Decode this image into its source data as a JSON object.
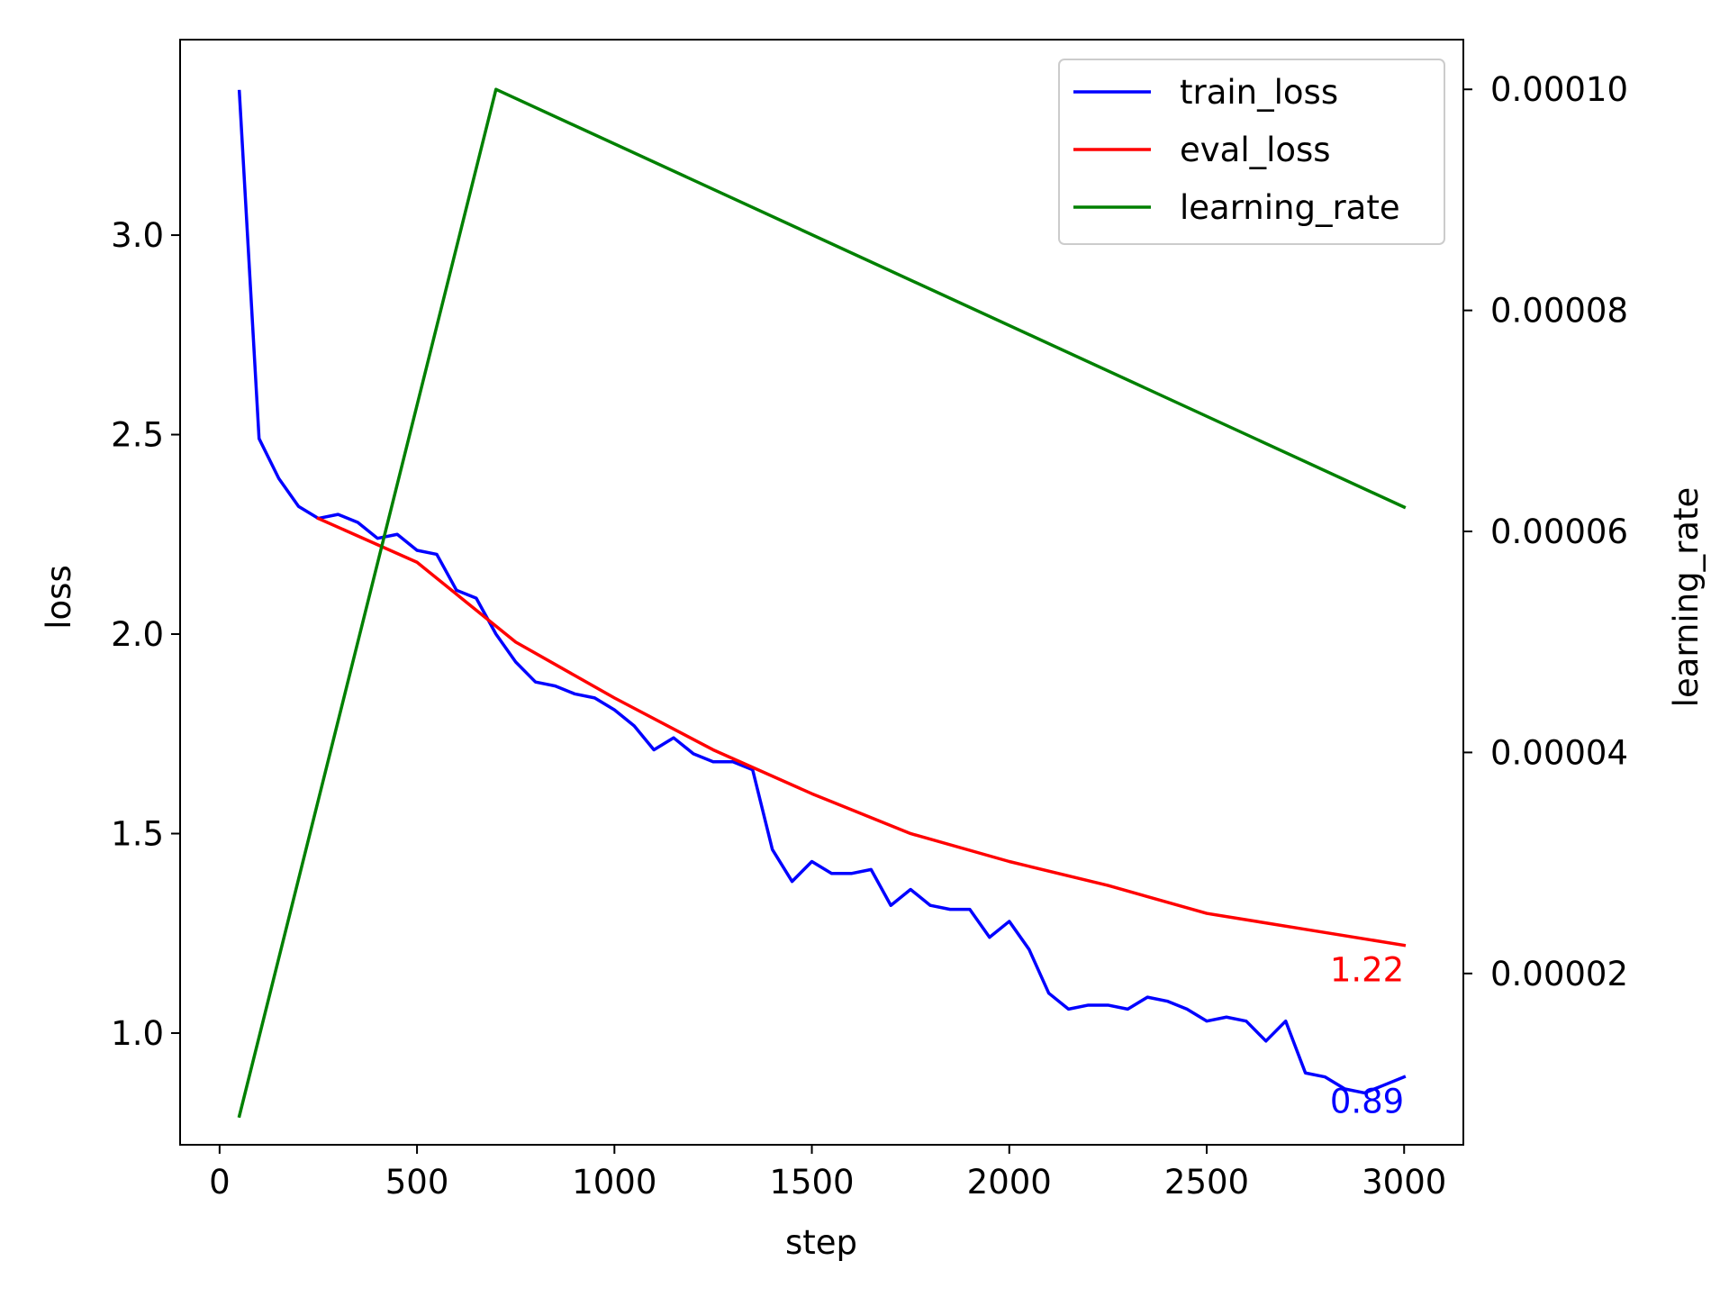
{
  "chart_data": {
    "type": "line",
    "xlabel": "step",
    "ylabel_left": "loss",
    "ylabel_right": "learning_rate",
    "xlim": [
      -100,
      3150
    ],
    "ylim_left": [
      0.72,
      3.49
    ],
    "ylim_right": [
      4.5e-06,
      0.0001045
    ],
    "x_ticks": [
      0,
      500,
      1000,
      1500,
      2000,
      2500,
      3000
    ],
    "y_left_ticks": [
      1.0,
      1.5,
      2.0,
      2.5,
      3.0
    ],
    "y_left_tick_labels": [
      "1.0",
      "1.5",
      "2.0",
      "2.5",
      "3.0"
    ],
    "y_right_ticks": [
      2e-05,
      4e-05,
      6e-05,
      8e-05,
      0.0001
    ],
    "y_right_tick_labels": [
      "0.00002",
      "0.00004",
      "0.00006",
      "0.00008",
      "0.00010"
    ],
    "legend_position": "top-right",
    "series": [
      {
        "name": "train_loss",
        "axis": "left",
        "color": "#0000ff",
        "points": [
          [
            50,
            3.36
          ],
          [
            100,
            2.49
          ],
          [
            150,
            2.39
          ],
          [
            200,
            2.32
          ],
          [
            250,
            2.29
          ],
          [
            300,
            2.3
          ],
          [
            350,
            2.28
          ],
          [
            400,
            2.24
          ],
          [
            450,
            2.25
          ],
          [
            500,
            2.21
          ],
          [
            550,
            2.2
          ],
          [
            600,
            2.11
          ],
          [
            650,
            2.09
          ],
          [
            700,
            2.0
          ],
          [
            750,
            1.93
          ],
          [
            800,
            1.88
          ],
          [
            850,
            1.87
          ],
          [
            900,
            1.85
          ],
          [
            950,
            1.84
          ],
          [
            1000,
            1.81
          ],
          [
            1050,
            1.77
          ],
          [
            1100,
            1.71
          ],
          [
            1150,
            1.74
          ],
          [
            1200,
            1.7
          ],
          [
            1250,
            1.68
          ],
          [
            1300,
            1.68
          ],
          [
            1350,
            1.66
          ],
          [
            1400,
            1.46
          ],
          [
            1450,
            1.38
          ],
          [
            1500,
            1.43
          ],
          [
            1550,
            1.4
          ],
          [
            1600,
            1.4
          ],
          [
            1650,
            1.41
          ],
          [
            1700,
            1.32
          ],
          [
            1750,
            1.36
          ],
          [
            1800,
            1.32
          ],
          [
            1850,
            1.31
          ],
          [
            1900,
            1.31
          ],
          [
            1950,
            1.24
          ],
          [
            2000,
            1.28
          ],
          [
            2050,
            1.21
          ],
          [
            2100,
            1.1
          ],
          [
            2150,
            1.06
          ],
          [
            2200,
            1.07
          ],
          [
            2250,
            1.07
          ],
          [
            2300,
            1.06
          ],
          [
            2350,
            1.09
          ],
          [
            2400,
            1.08
          ],
          [
            2450,
            1.06
          ],
          [
            2500,
            1.03
          ],
          [
            2550,
            1.04
          ],
          [
            2600,
            1.03
          ],
          [
            2650,
            0.98
          ],
          [
            2700,
            1.03
          ],
          [
            2750,
            0.9
          ],
          [
            2800,
            0.89
          ],
          [
            2850,
            0.86
          ],
          [
            2900,
            0.85
          ],
          [
            2950,
            0.87
          ],
          [
            3000,
            0.89
          ]
        ]
      },
      {
        "name": "eval_loss",
        "axis": "left",
        "color": "#ff0000",
        "points": [
          [
            250,
            2.29
          ],
          [
            500,
            2.18
          ],
          [
            750,
            1.98
          ],
          [
            1000,
            1.84
          ],
          [
            1250,
            1.71
          ],
          [
            1500,
            1.6
          ],
          [
            1750,
            1.5
          ],
          [
            2000,
            1.43
          ],
          [
            2250,
            1.37
          ],
          [
            2500,
            1.3
          ],
          [
            2750,
            1.26
          ],
          [
            3000,
            1.22
          ]
        ]
      },
      {
        "name": "learning_rate",
        "axis": "right",
        "color": "#008000",
        "points": [
          [
            50,
            7.1e-06
          ],
          [
            700,
            0.0001
          ],
          [
            3000,
            6.22e-05
          ]
        ]
      }
    ],
    "annotations": [
      {
        "text": "1.22",
        "x": 3000,
        "y": 1.22,
        "axis": "left",
        "color": "#ff0000"
      },
      {
        "text": "0.89",
        "x": 3000,
        "y": 0.89,
        "axis": "left",
        "color": "#0000ff"
      }
    ]
  }
}
